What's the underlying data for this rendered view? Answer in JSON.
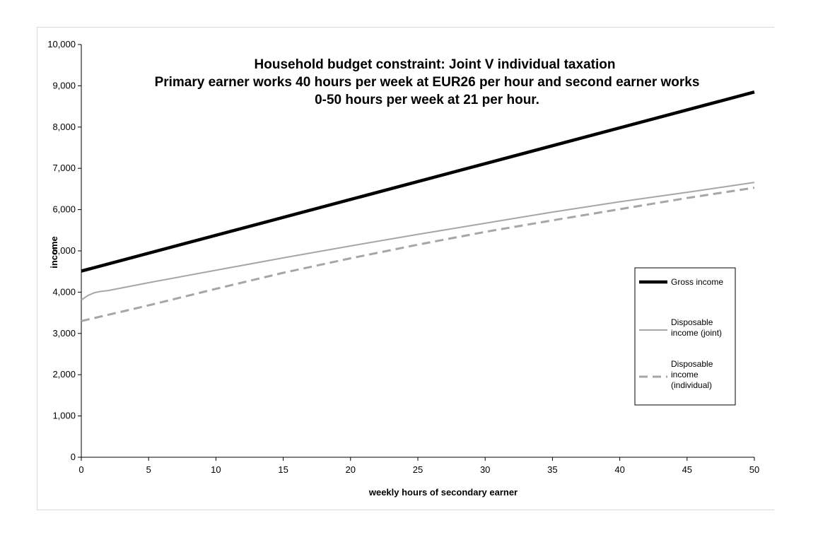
{
  "chart_data": {
    "type": "line",
    "title_lines": [
      "Household budget constraint: Joint V individual taxation",
      "Primary earner works 40 hours per week at EUR26 per hour and second earner  works",
      "0-50 hours per week at 21 per hour."
    ],
    "xlabel": "weekly hours of secondary earner",
    "ylabel": "income",
    "xlim": [
      0,
      50
    ],
    "ylim": [
      0,
      10000
    ],
    "xticks": [
      "0",
      "5",
      "10",
      "15",
      "20",
      "25",
      "30",
      "35",
      "40",
      "45",
      "50"
    ],
    "yticks": [
      "0",
      "1,000",
      "2,000",
      "3,000",
      "4,000",
      "5,000",
      "6,000",
      "7,000",
      "8,000",
      "9,000",
      "10,000"
    ],
    "grid": false,
    "legend_position": "right",
    "series": [
      {
        "name": "Gross income",
        "color": "#000000",
        "style": "solid-thick",
        "x": [
          0,
          50
        ],
        "y": [
          4510,
          8850
        ]
      },
      {
        "name": "Disposable income (joint)",
        "color": "#a6a6a6",
        "style": "solid-thin",
        "x": [
          0,
          0.5,
          1,
          1.5,
          2,
          5,
          10,
          15,
          20,
          25,
          30,
          35,
          40,
          45,
          50
        ],
        "y": [
          3810,
          3920,
          3990,
          4020,
          4040,
          4230,
          4530,
          4830,
          5120,
          5400,
          5670,
          5940,
          6190,
          6420,
          6660
        ]
      },
      {
        "name": "Disposable income (individual)",
        "color": "#a6a6a6",
        "style": "dashed",
        "x": [
          0,
          5,
          10,
          15,
          20,
          25,
          30,
          35,
          40,
          45,
          50
        ],
        "y": [
          3300,
          3680,
          4080,
          4470,
          4820,
          5150,
          5460,
          5740,
          6010,
          6280,
          6530
        ]
      }
    ],
    "legend_labels": [
      [
        "Gross income"
      ],
      [
        "Disposable",
        "income (joint)"
      ],
      [
        "Disposable",
        "income",
        "(individual)"
      ]
    ]
  }
}
